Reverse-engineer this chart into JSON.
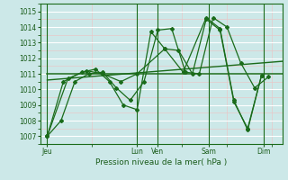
{
  "xlabel": "Pression niveau de la mer( hPa )",
  "background_color": "#cce8e8",
  "grid_major_color": "#ffffff",
  "grid_minor_color": "#e8c8c8",
  "line_color": "#1a6b1a",
  "ylim": [
    1006.5,
    1015.5
  ],
  "yticks": [
    1007,
    1008,
    1009,
    1010,
    1011,
    1012,
    1013,
    1014,
    1015
  ],
  "xlim": [
    0,
    10.5
  ],
  "day_labels": [
    "Jeu",
    "Lun",
    "Ven",
    "Sam",
    "Dim"
  ],
  "day_x": [
    0.3,
    4.2,
    5.1,
    7.3,
    9.7
  ],
  "vline_x": [
    0.3,
    4.2,
    5.1,
    7.3,
    9.7
  ],
  "flat_line_y": 1011.0,
  "flat_line_x": [
    0.3,
    10.5
  ],
  "trend_x": [
    0.3,
    10.5
  ],
  "trend_y": [
    1010.6,
    1011.8
  ],
  "s1_x": [
    0.3,
    0.9,
    1.5,
    2.1,
    2.7,
    3.3,
    3.9,
    4.5,
    5.1,
    5.7,
    6.3,
    6.9,
    7.5,
    8.1,
    8.7,
    9.3,
    9.9
  ],
  "s1_y": [
    1007.0,
    1008.0,
    1010.5,
    1011.0,
    1011.1,
    1010.1,
    1009.3,
    1010.5,
    1013.8,
    1013.9,
    1011.1,
    1011.0,
    1014.6,
    1014.0,
    1011.7,
    1010.1,
    1010.8
  ],
  "s2_x": [
    0.3,
    1.0,
    1.8,
    2.4,
    3.0,
    3.6,
    4.2,
    4.8,
    5.4,
    6.0,
    6.6,
    7.2,
    7.8,
    8.4,
    9.0,
    9.6
  ],
  "s2_y": [
    1007.0,
    1010.5,
    1011.1,
    1011.3,
    1010.5,
    1009.0,
    1008.7,
    1013.7,
    1012.6,
    1012.5,
    1011.0,
    1014.5,
    1013.8,
    1009.2,
    1007.5,
    1010.9
  ],
  "s3_x": [
    0.3,
    1.2,
    2.0,
    2.7,
    3.5,
    4.2,
    5.4,
    6.2,
    7.2,
    7.8,
    8.4,
    9.0,
    9.6
  ],
  "s3_y": [
    1007.0,
    1010.7,
    1011.2,
    1011.0,
    1010.5,
    1011.0,
    1012.6,
    1011.1,
    1014.6,
    1013.9,
    1009.3,
    1007.4,
    1010.9
  ]
}
